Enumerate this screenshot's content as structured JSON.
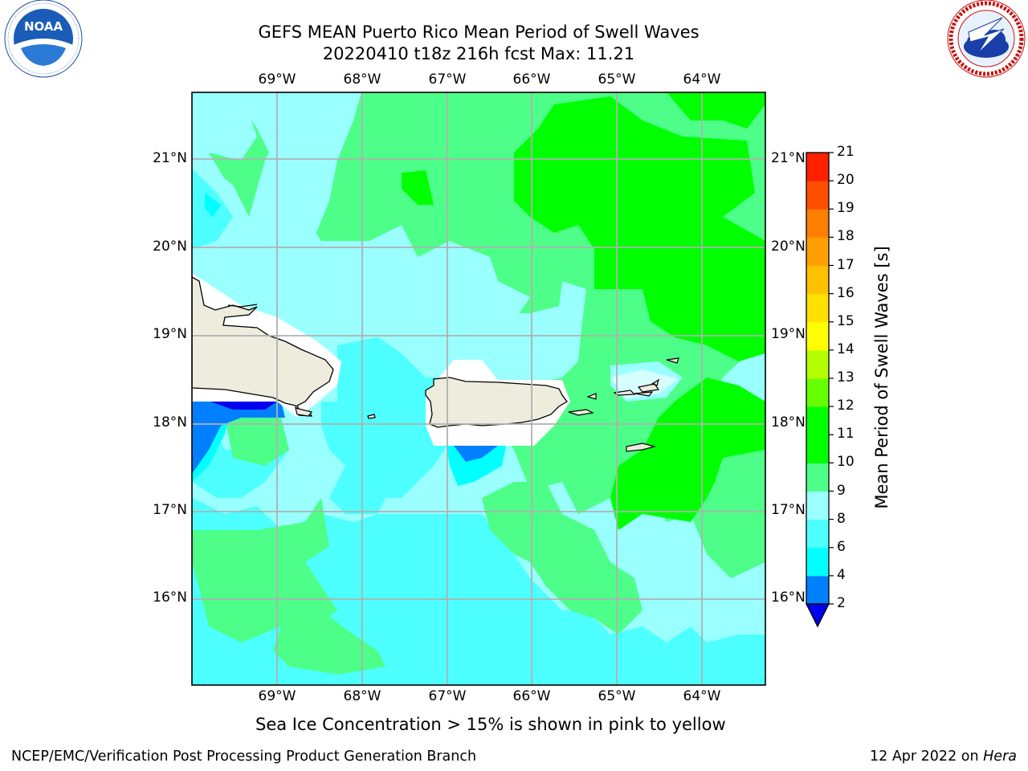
{
  "header": {
    "title_line1": "GEFS MEAN Puerto Rico Mean Period of Swell Waves",
    "title_line2": "20220410 t18z 216h fcst   Max: 11.21"
  },
  "logos": {
    "left": {
      "name": "noaa-logo",
      "text": "NOAA",
      "ring_text": "NATIONAL OCEANIC AND ATMOSPHERIC ADMINISTRATION · U.S. DEPARTMENT OF COMMERCE"
    },
    "right": {
      "name": "nws-logo",
      "ring_text": "NATIONAL WEATHER SERVICE"
    }
  },
  "map": {
    "lon_ticks": [
      "69°W",
      "68°W",
      "67°W",
      "66°W",
      "65°W",
      "64°W"
    ],
    "lat_ticks": [
      "21°N",
      "20°N",
      "19°N",
      "18°N",
      "17°N",
      "16°N"
    ],
    "land_color": "#eeecdc",
    "grid_color": "#b0b0b0"
  },
  "colorbar": {
    "label": "Mean Period of Swell Waves [s]",
    "ticks": [
      "21",
      "20",
      "19",
      "18",
      "17",
      "16",
      "15",
      "14",
      "13",
      "12",
      "11",
      "10",
      "9",
      "8",
      "6",
      "4",
      "2"
    ],
    "colors": [
      "#0000ee",
      "#0080ff",
      "#00ffff",
      "#4dffff",
      "#99ffff",
      "#4dff88",
      "#00ff00",
      "#00ff00",
      "#66ff00",
      "#b3ff00",
      "#ccff00",
      "#ffff00",
      "#ffee00",
      "#ffc000",
      "#ffa000",
      "#ff8000",
      "#ff5000",
      "#ff2000",
      "#ff0000"
    ],
    "extend_color": "#0000ee"
  },
  "chart_data": {
    "type": "heatmap",
    "title": "GEFS MEAN Puerto Rico Mean Period of Swell Waves",
    "subtitle": "20220410 t18z 216h fcst   Max: 11.21",
    "colorbar_label": "Mean Period of Swell Waves [s]",
    "colorbar_levels": [
      2,
      4,
      6,
      8,
      9,
      10,
      11,
      12,
      13,
      14,
      15,
      16,
      17,
      18,
      19,
      20,
      21
    ],
    "lon_range": [
      "70°W",
      "63.3°W"
    ],
    "lat_range": [
      "15°N",
      "21.7°N"
    ],
    "max": 11.21
  },
  "note": "Sea Ice Concentration > 15% is shown in pink to yellow",
  "footer": {
    "left": "NCEP/EMC/Verification Post Processing Product Generation Branch",
    "right_date": "12 Apr 2022 on ",
    "right_host": "Hera"
  }
}
